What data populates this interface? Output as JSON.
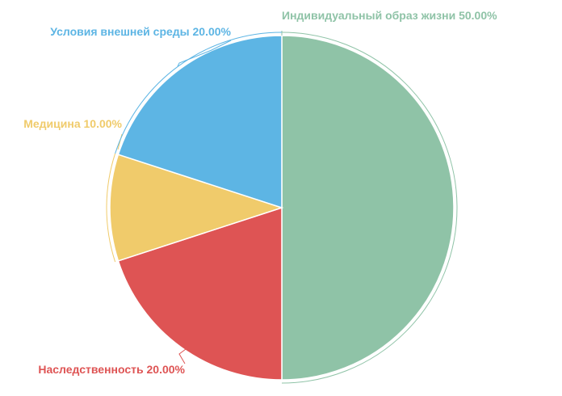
{
  "chart_data": {
    "type": "pie",
    "categories": [
      "Индивидуальный образ жизни",
      "Наследственность",
      "Медицина",
      "Условия внешней среды"
    ],
    "values": [
      50,
      20,
      10,
      20
    ],
    "colors": [
      "#8fc3a7",
      "#de5454",
      "#f0cb6b",
      "#5db5e4"
    ],
    "labels": [
      "Индивидуальный образ жизни 50.00%",
      "Наследственность 20.00%",
      "Медицина 10.00%",
      "Условия внешней среды 20.00%"
    ],
    "start_angle": "12 o'clock",
    "direction": "clockwise",
    "legend": "none"
  }
}
